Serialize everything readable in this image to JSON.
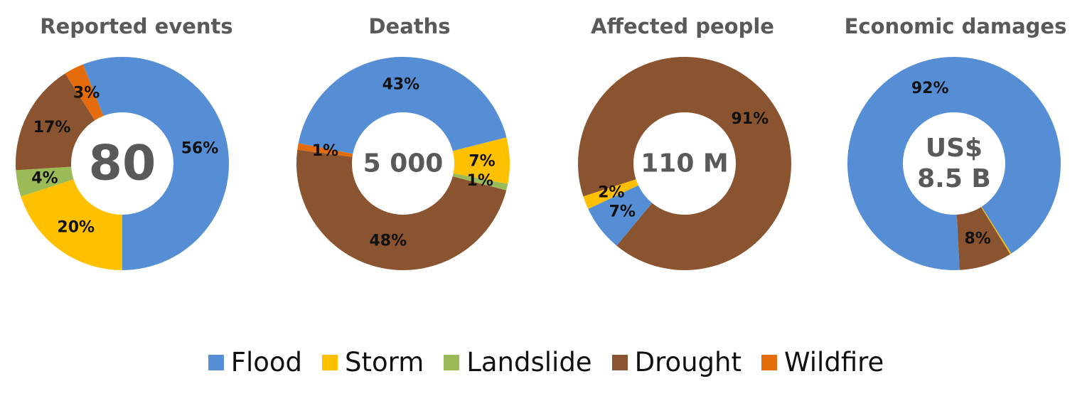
{
  "colors": {
    "Flood": "#558ed5",
    "Storm": "#ffc000",
    "Landslide": "#9bbb59",
    "Drought": "#8b5430",
    "Wildfire": "#e46c0a"
  },
  "legend": [
    "Flood",
    "Storm",
    "Landslide",
    "Drought",
    "Wildfire"
  ],
  "chart_data": [
    {
      "type": "pie",
      "title": "Reported events",
      "center_label": [
        "80"
      ],
      "slices": [
        {
          "name": "Storm",
          "value": 20,
          "label": "20%"
        },
        {
          "name": "Landslide",
          "value": 4,
          "label": "4%"
        },
        {
          "name": "Drought",
          "value": 17,
          "label": "17%"
        },
        {
          "name": "Wildfire",
          "value": 3,
          "label": "3%"
        },
        {
          "name": "Flood",
          "value": 56,
          "label": "56%"
        }
      ]
    },
    {
      "type": "pie",
      "title": "Deaths",
      "center_label": [
        "5 000"
      ],
      "slices": [
        {
          "name": "Landslide",
          "value": 1,
          "label": "1%"
        },
        {
          "name": "Drought",
          "value": 48,
          "label": "48%"
        },
        {
          "name": "Wildfire",
          "value": 1,
          "label": "1%"
        },
        {
          "name": "Flood",
          "value": 43,
          "label": "43%"
        },
        {
          "name": "Storm",
          "value": 7,
          "label": "7%"
        }
      ]
    },
    {
      "type": "pie",
      "title": "Affected people",
      "center_label": [
        "110 M"
      ],
      "slices": [
        {
          "name": "Drought",
          "value": 91,
          "label": "91%"
        },
        {
          "name": "Flood",
          "value": 7,
          "label": "7%"
        },
        {
          "name": "Storm",
          "value": 2,
          "label": "2%"
        }
      ]
    },
    {
      "type": "pie",
      "title": "Economic damages",
      "center_label": [
        "US$",
        "8.5 B"
      ],
      "slices": [
        {
          "name": "Flood",
          "value": 92,
          "label": "92%"
        },
        {
          "name": "Storm",
          "value": 0.2,
          "label": ""
        },
        {
          "name": "Drought",
          "value": 8,
          "label": "8%"
        }
      ]
    }
  ]
}
